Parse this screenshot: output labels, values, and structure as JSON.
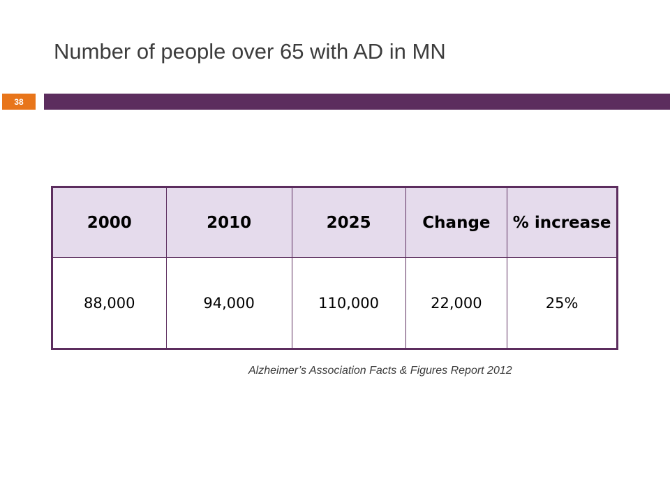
{
  "slide": {
    "title": "Number of people over 65 with AD in MN",
    "number": "38",
    "source": "Alzheimer’s Association Facts & Figures Report 2012"
  },
  "table": {
    "headers": [
      "2000",
      "2010",
      "2025",
      "Change",
      "% increase"
    ],
    "rows": [
      [
        "88,000",
        "94,000",
        "110,000",
        "22,000",
        "25%"
      ]
    ]
  },
  "colors": {
    "accent_bar": "#5c2d5e",
    "slide_number_bg": "#e8751a",
    "header_fill": "#e5dbec"
  }
}
